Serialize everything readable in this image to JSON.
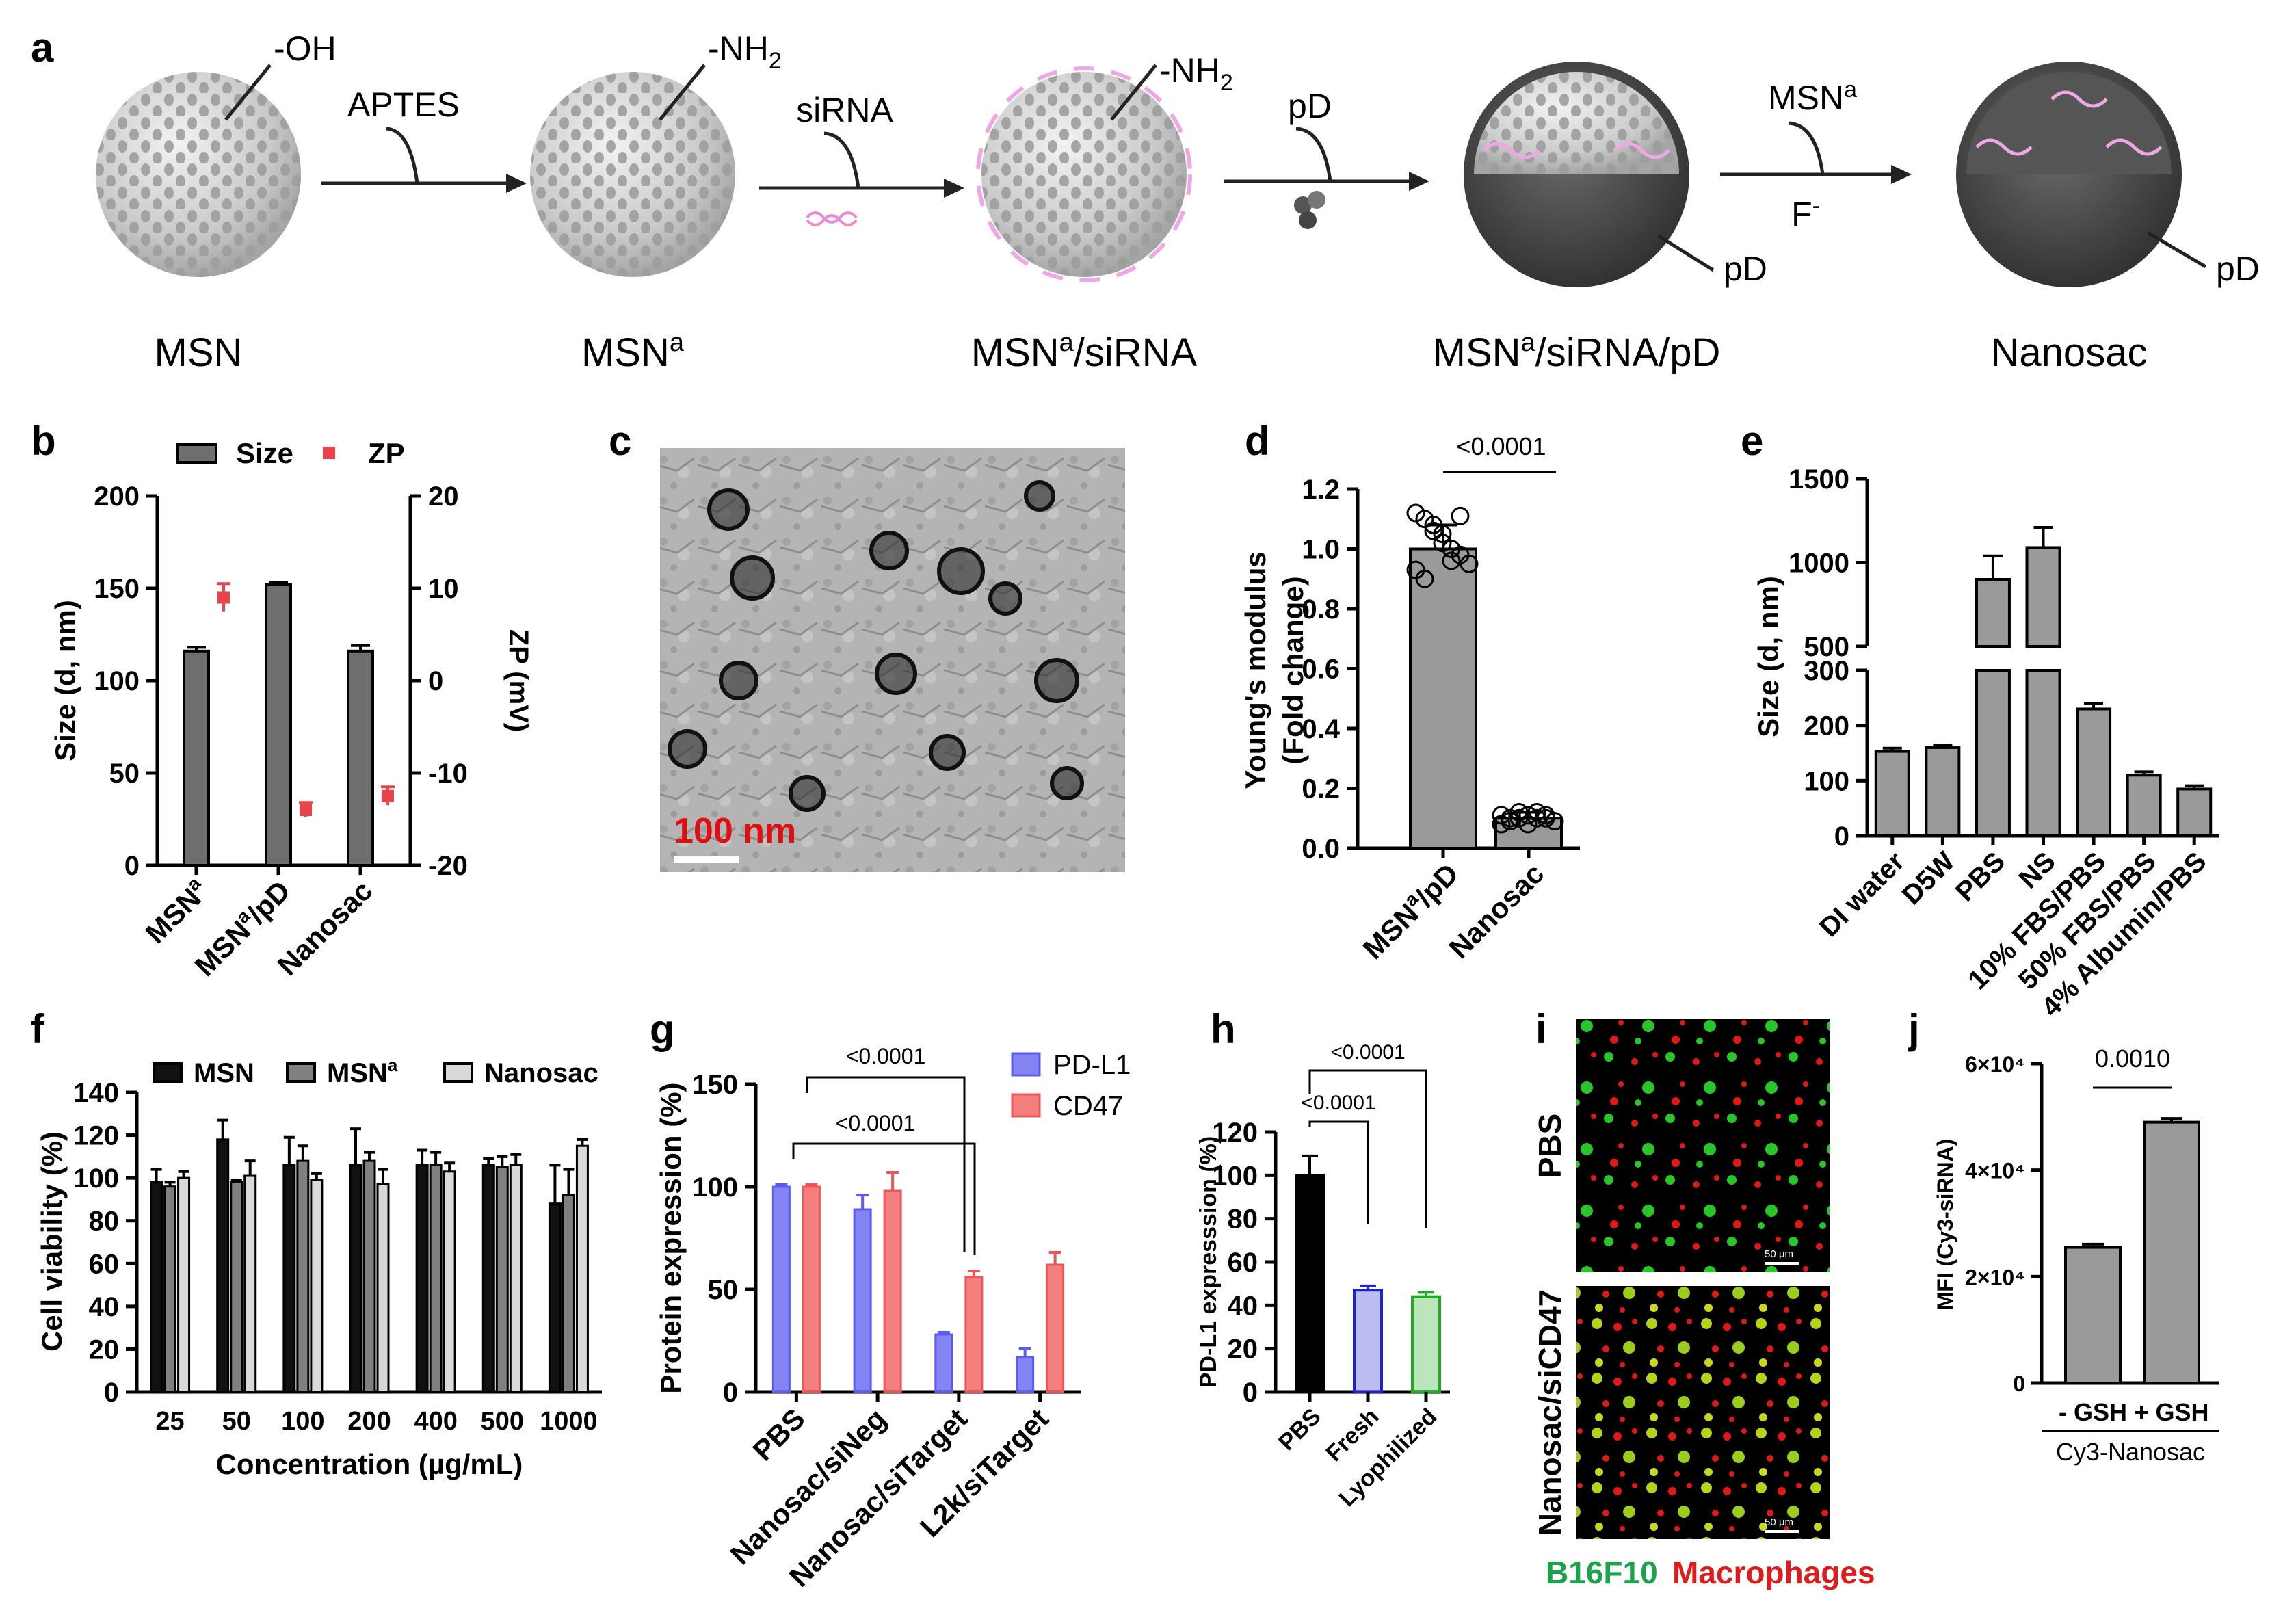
{
  "panels": {
    "a": {
      "label": "a",
      "steps": [
        {
          "name": "MSN",
          "group": "-OH"
        },
        {
          "name": "MSN",
          "sup": "a",
          "group": "-NH",
          "group_sub": "2"
        },
        {
          "name": "MSN",
          "sup": "a",
          "name_suffix": "/siRNA",
          "group": "-NH",
          "group_sub": "2"
        },
        {
          "name": "MSN",
          "sup": "a",
          "name_suffix": "/siRNA/pD",
          "coat": "pD"
        },
        {
          "name": "Nanosac",
          "coat": "pD"
        }
      ],
      "reagents": [
        {
          "label": "APTES"
        },
        {
          "label": "siRNA"
        },
        {
          "label": "pD"
        },
        {
          "label": "MSN",
          "sup": "a",
          "below": "F",
          "below_sup": "-"
        }
      ]
    },
    "b": {
      "label": "b"
    },
    "c": {
      "label": "c",
      "scalebar": "100 nm"
    },
    "d": {
      "label": "d"
    },
    "e": {
      "label": "e"
    },
    "f": {
      "label": "f"
    },
    "g": {
      "label": "g"
    },
    "h": {
      "label": "h"
    },
    "i": {
      "label": "i",
      "rows": [
        "PBS",
        "Nanosac/siCD47"
      ],
      "scale": "50 μm",
      "legend": [
        {
          "text": "B16F10",
          "color": "#1aa34a"
        },
        {
          "text": "Macrophages",
          "color": "#e01b1b"
        }
      ]
    },
    "j": {
      "label": "j"
    }
  },
  "chart_data": [
    {
      "panel": "b",
      "type": "bar",
      "categories": [
        "MSN^a",
        "MSN^a/pD",
        "Nanosac"
      ],
      "legend": [
        "Size",
        "ZP"
      ],
      "series": [
        {
          "name": "Size",
          "values": [
            116,
            152,
            116
          ],
          "errors": [
            2,
            1,
            3
          ],
          "color": "#6e6e6e"
        },
        {
          "name": "ZP",
          "type": "scatter",
          "axis": "right",
          "values": [
            9,
            -14,
            -12.5
          ],
          "errors": [
            1.5,
            0.8,
            1
          ],
          "color": "#e8454a"
        }
      ],
      "ylabel": "Size (d, nm)",
      "ylim": [
        0,
        200
      ],
      "yticks": [
        0,
        50,
        100,
        150,
        200
      ],
      "y2label": "ZP (mV)",
      "y2lim": [
        -20,
        20
      ],
      "y2ticks": [
        -20,
        -10,
        0,
        10,
        20
      ]
    },
    {
      "panel": "d",
      "type": "bar",
      "categories": [
        "MSN^a/pD",
        "Nanosac"
      ],
      "values": [
        1.0,
        0.1
      ],
      "errors": [
        0.08,
        0.02
      ],
      "points": [
        [
          1.12,
          1.1,
          1.08,
          1.05,
          1.0,
          0.98,
          0.95,
          0.93,
          0.9,
          1.06,
          1.02,
          0.96,
          1.11
        ],
        [
          0.08,
          0.09,
          0.1,
          0.11,
          0.12,
          0.1,
          0.09,
          0.11,
          0.1,
          0.12,
          0.08,
          0.1,
          0.11
        ]
      ],
      "ylabel": "Young's modulus (Fold change)",
      "ylim": [
        0,
        1.2
      ],
      "yticks": [
        "0.0",
        "0.2",
        "0.4",
        "0.6",
        "0.8",
        "1.0",
        "1.2"
      ],
      "annotation": "<0.0001"
    },
    {
      "panel": "e",
      "type": "bar",
      "categories": [
        "DI water",
        "D5W",
        "PBS",
        "NS",
        "10% FBS/PBS",
        "50% FBS/PBS",
        "4% Albumin/PBS"
      ],
      "values": [
        153,
        160,
        900,
        1090,
        230,
        110,
        85
      ],
      "errors": [
        6,
        4,
        140,
        120,
        10,
        6,
        6
      ],
      "ylabel": "Size (d, nm)",
      "axis_break": [
        300,
        500
      ],
      "yticks_lower": [
        0,
        100,
        200,
        300
      ],
      "yticks_upper": [
        500,
        1000,
        1500
      ]
    },
    {
      "panel": "f",
      "type": "bar",
      "categories": [
        "25",
        "50",
        "100",
        "200",
        "400",
        "500",
        "1000"
      ],
      "legend": [
        "MSN",
        "MSN^a",
        "Nanosac"
      ],
      "series": [
        {
          "name": "MSN",
          "values": [
            98,
            118,
            106,
            106,
            106,
            106,
            88
          ],
          "errors": [
            6,
            9,
            13,
            17,
            7,
            3,
            18
          ],
          "color": "#111111"
        },
        {
          "name": "MSN^a",
          "values": [
            96,
            98,
            108,
            108,
            106,
            105,
            92
          ],
          "errors": [
            2,
            1,
            7,
            4,
            6,
            5,
            12
          ],
          "color": "#808080"
        },
        {
          "name": "Nanosac",
          "values": [
            100,
            101,
            99,
            97,
            103,
            106,
            115
          ],
          "errors": [
            3,
            7,
            3,
            7,
            4,
            5,
            3
          ],
          "color": "#d9d9d9"
        }
      ],
      "xlabel": "Concentration (µg/mL)",
      "ylabel": "Cell viability (%)",
      "ylim": [
        0,
        140
      ],
      "yticks": [
        0,
        20,
        40,
        60,
        80,
        100,
        120,
        140
      ]
    },
    {
      "panel": "g",
      "type": "bar",
      "categories": [
        "PBS",
        "Nanosac/siNeg",
        "Nanosac/siTarget",
        "L2k/siTarget"
      ],
      "legend": [
        "PD-L1",
        "CD47"
      ],
      "series": [
        {
          "name": "PD-L1",
          "values": [
            100,
            89,
            28,
            17
          ],
          "errors": [
            1,
            7,
            1,
            4
          ],
          "color": "#5b5bf0"
        },
        {
          "name": "CD47",
          "values": [
            100,
            98,
            56,
            62
          ],
          "errors": [
            1,
            9,
            3,
            6
          ],
          "color": "#f05454"
        }
      ],
      "ylabel": "Protein expression (%)",
      "ylim": [
        0,
        150
      ],
      "yticks": [
        0,
        50,
        100,
        150
      ],
      "annotations": [
        "<0.0001",
        "<0.0001"
      ]
    },
    {
      "panel": "h",
      "type": "bar",
      "categories": [
        "PBS",
        "Fresh",
        "Lyophilized"
      ],
      "values": [
        100,
        47,
        44
      ],
      "errors": [
        9,
        2,
        2
      ],
      "colors": [
        "#000000",
        "#2222cc",
        "#22aa22"
      ],
      "ylabel": "PD-L1 expresssion (%)",
      "ylim": [
        0,
        120
      ],
      "yticks": [
        0,
        20,
        40,
        60,
        80,
        100,
        120
      ],
      "annotations": [
        "<0.0001",
        "<0.0001"
      ]
    },
    {
      "panel": "j",
      "type": "bar",
      "categories": [
        "- GSH",
        "+ GSH"
      ],
      "values": [
        25500,
        49000
      ],
      "errors": [
        600,
        700
      ],
      "ylabel": "MFI (Cy3-siRNA)",
      "ylim": [
        0,
        60000
      ],
      "yticks": [
        "0",
        "2×10⁴",
        "4×10⁴",
        "6×10⁴"
      ],
      "group_label": "Cy3-Nanosac",
      "annotation": "0.0010"
    }
  ]
}
